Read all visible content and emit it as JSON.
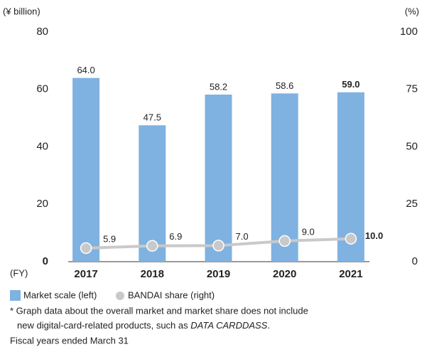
{
  "chart_data": {
    "type": "bar_line",
    "y_label": "(¥ billion)",
    "y2_label": "(%)",
    "x_label": "(FY)",
    "categories": [
      "2017",
      "2018",
      "2019",
      "2020",
      "2021"
    ],
    "series": [
      {
        "name": "Market scale (left)",
        "type": "bar",
        "color": "#7fb2e0",
        "values": [
          64.0,
          47.5,
          58.2,
          58.6,
          59.0
        ],
        "value_labels": [
          "64.0",
          "47.5",
          "58.2",
          "58.6",
          "59.0"
        ]
      },
      {
        "name": "BANDAI share (right)",
        "type": "line",
        "axis": "y2",
        "color": "#c9c9c9",
        "values": [
          5.9,
          6.9,
          7.0,
          9.0,
          10.0
        ],
        "value_labels": [
          "5.9",
          "6.9",
          "7.0",
          "9.0",
          "10.0"
        ]
      }
    ],
    "ylim": [
      0,
      80
    ],
    "yticks": [
      0,
      20,
      40,
      60,
      80
    ],
    "y2lim": [
      0,
      100
    ],
    "y2ticks": [
      0,
      25,
      50,
      75,
      100
    ],
    "notes": [
      "* Graph data about the overall market and market share does not include",
      "new digital-card-related products, such as",
      "DATA CARDDASS",
      ".",
      "Fiscal years ended March 31"
    ]
  }
}
